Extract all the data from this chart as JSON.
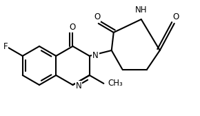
{
  "background": "#ffffff",
  "lc": "#000000",
  "lw": 1.5,
  "fs": 8.5,
  "bl": 28,
  "figsize": [
    2.9,
    1.68
  ],
  "dpi": 100,
  "atoms": {
    "F": "F",
    "O_carbonyl": "O",
    "O_pip2": "O",
    "O_pip6": "O",
    "N3": "N",
    "N1": "N",
    "NH": "NH",
    "CH3": "CH₃"
  }
}
